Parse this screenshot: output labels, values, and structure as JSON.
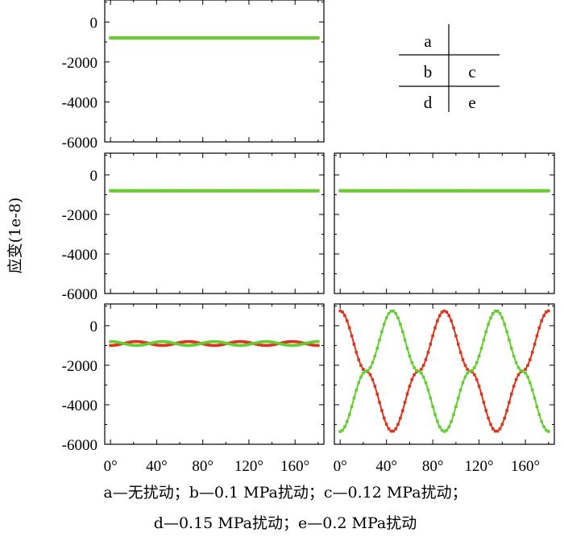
{
  "chart_data": {
    "type": "line",
    "ylabel": "应变(1e-8)",
    "xlim": [
      -5,
      185
    ],
    "ylim": [
      -6000,
      1100
    ],
    "xticks": [
      0,
      40,
      80,
      120,
      160
    ],
    "xtick_labels": [
      "0°",
      "40°",
      "80°",
      "120°",
      "160°"
    ],
    "yticks": [
      0,
      -2000,
      -4000,
      -6000
    ],
    "ytick_labels": [
      "0",
      "-2000",
      "-4000",
      "-6000"
    ],
    "series_colors": {
      "red": "#d9361f",
      "green": "#66cc33"
    },
    "panels": [
      {
        "id": "a",
        "series": [
          {
            "color": "red",
            "x": [
              0,
              180
            ],
            "y": [
              -800,
              -800
            ]
          },
          {
            "color": "green",
            "x": [
              0,
              180
            ],
            "y": [
              -800,
              -800
            ]
          }
        ]
      },
      {
        "id": "b",
        "series": [
          {
            "color": "red",
            "x": [
              0,
              180
            ],
            "y": [
              -800,
              -800
            ]
          },
          {
            "color": "green",
            "x": [
              0,
              180
            ],
            "y": [
              -800,
              -800
            ]
          }
        ]
      },
      {
        "id": "c",
        "series": [
          {
            "color": "red",
            "x": [
              0,
              180
            ],
            "y": [
              -800,
              -800
            ]
          },
          {
            "color": "green",
            "x": [
              0,
              180
            ],
            "y": [
              -800,
              -800
            ]
          }
        ]
      },
      {
        "id": "d",
        "series": [
          {
            "color": "red",
            "x": [
              0,
              22.5,
              45,
              67.5,
              90,
              112.5,
              135,
              157.5,
              180
            ],
            "y": [
              -1000,
              -800,
              -1000,
              -800,
              -1000,
              -800,
              -1000,
              -800,
              -1000
            ]
          },
          {
            "color": "green",
            "x": [
              0,
              22.5,
              45,
              67.5,
              90,
              112.5,
              135,
              157.5,
              180
            ],
            "y": [
              -800,
              -1000,
              -800,
              -1000,
              -800,
              -1000,
              -800,
              -1000,
              -800
            ]
          }
        ]
      },
      {
        "id": "e",
        "series": [
          {
            "color": "red",
            "x": [
              0,
              22.5,
              45,
              67.5,
              90,
              112.5,
              135,
              157.5,
              180
            ],
            "y": [
              750,
              -2300,
              -5350,
              -2300,
              750,
              -2300,
              -5350,
              -2300,
              750
            ]
          },
          {
            "color": "green",
            "x": [
              0,
              22.5,
              45,
              67.5,
              90,
              112.5,
              135,
              157.5,
              180
            ],
            "y": [
              -5350,
              -2300,
              750,
              -2300,
              -5350,
              -2300,
              750,
              -2300,
              -5350
            ]
          }
        ]
      }
    ],
    "layout_key": {
      "rows": [
        [
          "a",
          ""
        ],
        [
          "b",
          "c"
        ],
        [
          "d",
          "e"
        ]
      ]
    }
  },
  "caption": {
    "line1": "a—无扰动；b—0.1 MPa扰动；c—0.12 MPa扰动；",
    "line2": "d—0.15 MPa扰动；e—0.2 MPa扰动"
  }
}
